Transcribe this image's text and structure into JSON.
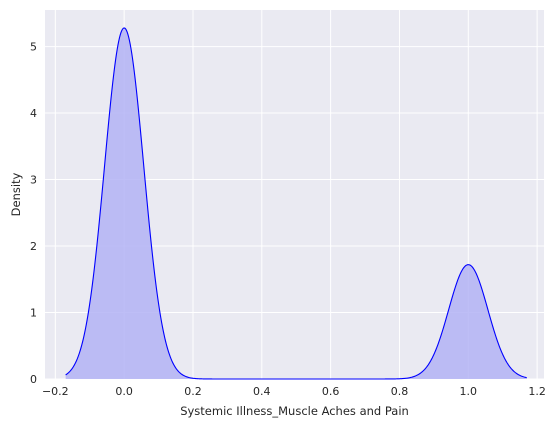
{
  "chart_data": {
    "type": "area",
    "title": "",
    "xlabel": "Systemic Illness_Muscle Aches and Pain",
    "ylabel": "Density",
    "xlim": [
      -0.23,
      1.22
    ],
    "ylim": [
      0,
      5.55
    ],
    "x_ticks": [
      -0.2,
      0.0,
      0.2,
      0.4,
      0.6,
      0.8,
      1.0,
      1.2
    ],
    "x_tick_labels": [
      "−0.2",
      "0.0",
      "0.2",
      "0.4",
      "0.6",
      "0.8",
      "1.0",
      "1.2"
    ],
    "y_ticks": [
      0,
      1,
      2,
      3,
      4,
      5
    ],
    "y_tick_labels": [
      "0",
      "1",
      "2",
      "3",
      "4",
      "5"
    ],
    "grid": true,
    "x_range_drawn": [
      -0.17,
      1.17
    ],
    "series": [
      {
        "components": [
          {
            "center": 0.0,
            "peak": 5.28,
            "sd": 0.057
          },
          {
            "center": 1.0,
            "peak": 1.72,
            "sd": 0.057
          }
        ],
        "line_color": "#0000ff",
        "fill_color": "#b3b3f5"
      }
    ],
    "background_color": "#eaeaf2",
    "grid_color": "#ffffff"
  }
}
